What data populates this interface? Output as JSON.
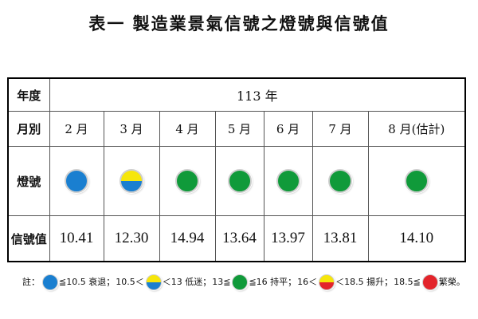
{
  "title": "表一 製造業景氣信號之燈號與信號值",
  "table": {
    "year_header": "年度",
    "year_value": "113 年",
    "month_header": "月別",
    "lamp_header": "燈號",
    "value_header": "信號值",
    "columns": [
      {
        "month": "2 月",
        "lamp": "blue",
        "value": "10.41"
      },
      {
        "month": "3 月",
        "lamp": "yellow-blue",
        "value": "12.30"
      },
      {
        "month": "4 月",
        "lamp": "green",
        "value": "14.94"
      },
      {
        "month": "5 月",
        "lamp": "green",
        "value": "13.64"
      },
      {
        "month": "6 月",
        "lamp": "green",
        "value": "13.97"
      },
      {
        "month": "7 月",
        "lamp": "green",
        "value": "13.81"
      },
      {
        "month": "8 月(估計)",
        "lamp": "green",
        "value": "14.10"
      }
    ]
  },
  "legend": {
    "prefix": "註：",
    "items": [
      {
        "lamp": "blue",
        "pre": "",
        "post": "≦10.5 衰退；"
      },
      {
        "lamp": "yellow-blue",
        "pre": "10.5＜",
        "post": "＜13 低迷；"
      },
      {
        "lamp": "green",
        "pre": "13≦",
        "post": "≦16 持平；"
      },
      {
        "lamp": "yellow-red",
        "pre": "16＜",
        "post": "＜18.5 揚升；"
      },
      {
        "lamp": "red",
        "pre": "18.5≦",
        "post": "繁榮。"
      }
    ]
  },
  "colors": {
    "blue": "#1a7fd0",
    "green": "#109a3a",
    "yellow": "#f6e60b",
    "red": "#e3242b"
  }
}
